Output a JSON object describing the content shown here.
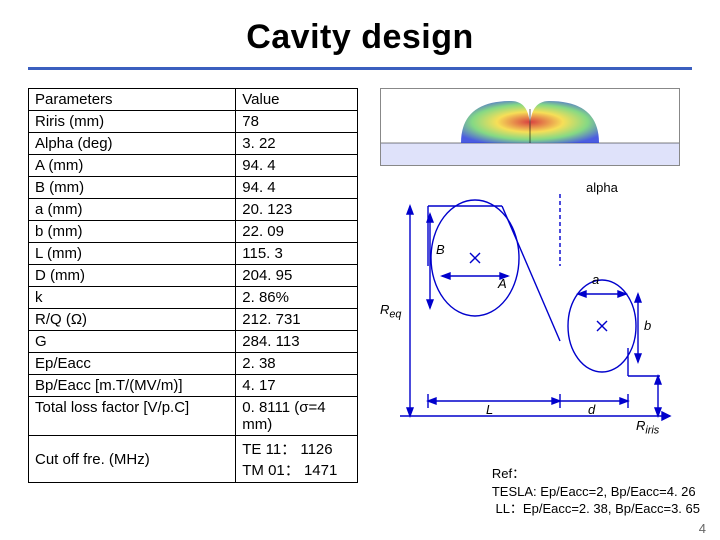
{
  "title": "Cavity design",
  "table": {
    "headers": [
      "Parameters",
      "Value"
    ],
    "rows": [
      [
        "Riris (mm)",
        "78"
      ],
      [
        "Alpha (deg)",
        "3. 22"
      ],
      [
        "A (mm)",
        "94. 4"
      ],
      [
        "B (mm)",
        "94. 4"
      ],
      [
        "a (mm)",
        "20. 123"
      ],
      [
        "b (mm)",
        "22. 09"
      ],
      [
        "L (mm)",
        "115. 3"
      ],
      [
        "D (mm)",
        "204. 95"
      ],
      [
        "k",
        "2. 86%"
      ],
      [
        "R/Q (Ω)",
        "212. 731"
      ],
      [
        "G",
        "284. 113"
      ],
      [
        "Ep/Eacc",
        "2. 38"
      ],
      [
        "Bp/Eacc [m.T/(MV/m)]",
        "4. 17"
      ]
    ],
    "merged_a": [
      "Total loss factor [V/p.C]",
      "0. 8111 (σ=4 mm)"
    ],
    "merged_b_param": "Cut off fre. (MHz)",
    "merged_b_value": "TE 11： 1126\nTM 01： 1471"
  },
  "fig2_labels": {
    "alpha": "alpha",
    "B": "B",
    "A": "A",
    "a": "a",
    "b": "b",
    "L": "L",
    "d": "d",
    "Req": "R",
    "Req_sub": "eq",
    "Riris": "R",
    "Riris_sub": "iris"
  },
  "ref": {
    "line1": "Ref：",
    "line2": "TESLA: Ep/Eacc=2, Bp/Eacc=4. 26",
    "line3": " LL：Ep/Eacc=2. 38, Bp/Eacc=3. 65"
  },
  "page": "4",
  "colors": {
    "rule": "#3b5fbf",
    "diagram": "#0000cc",
    "fieldgrad_start": "#d11f1f",
    "fieldgrad_end": "#2b3fdc"
  }
}
